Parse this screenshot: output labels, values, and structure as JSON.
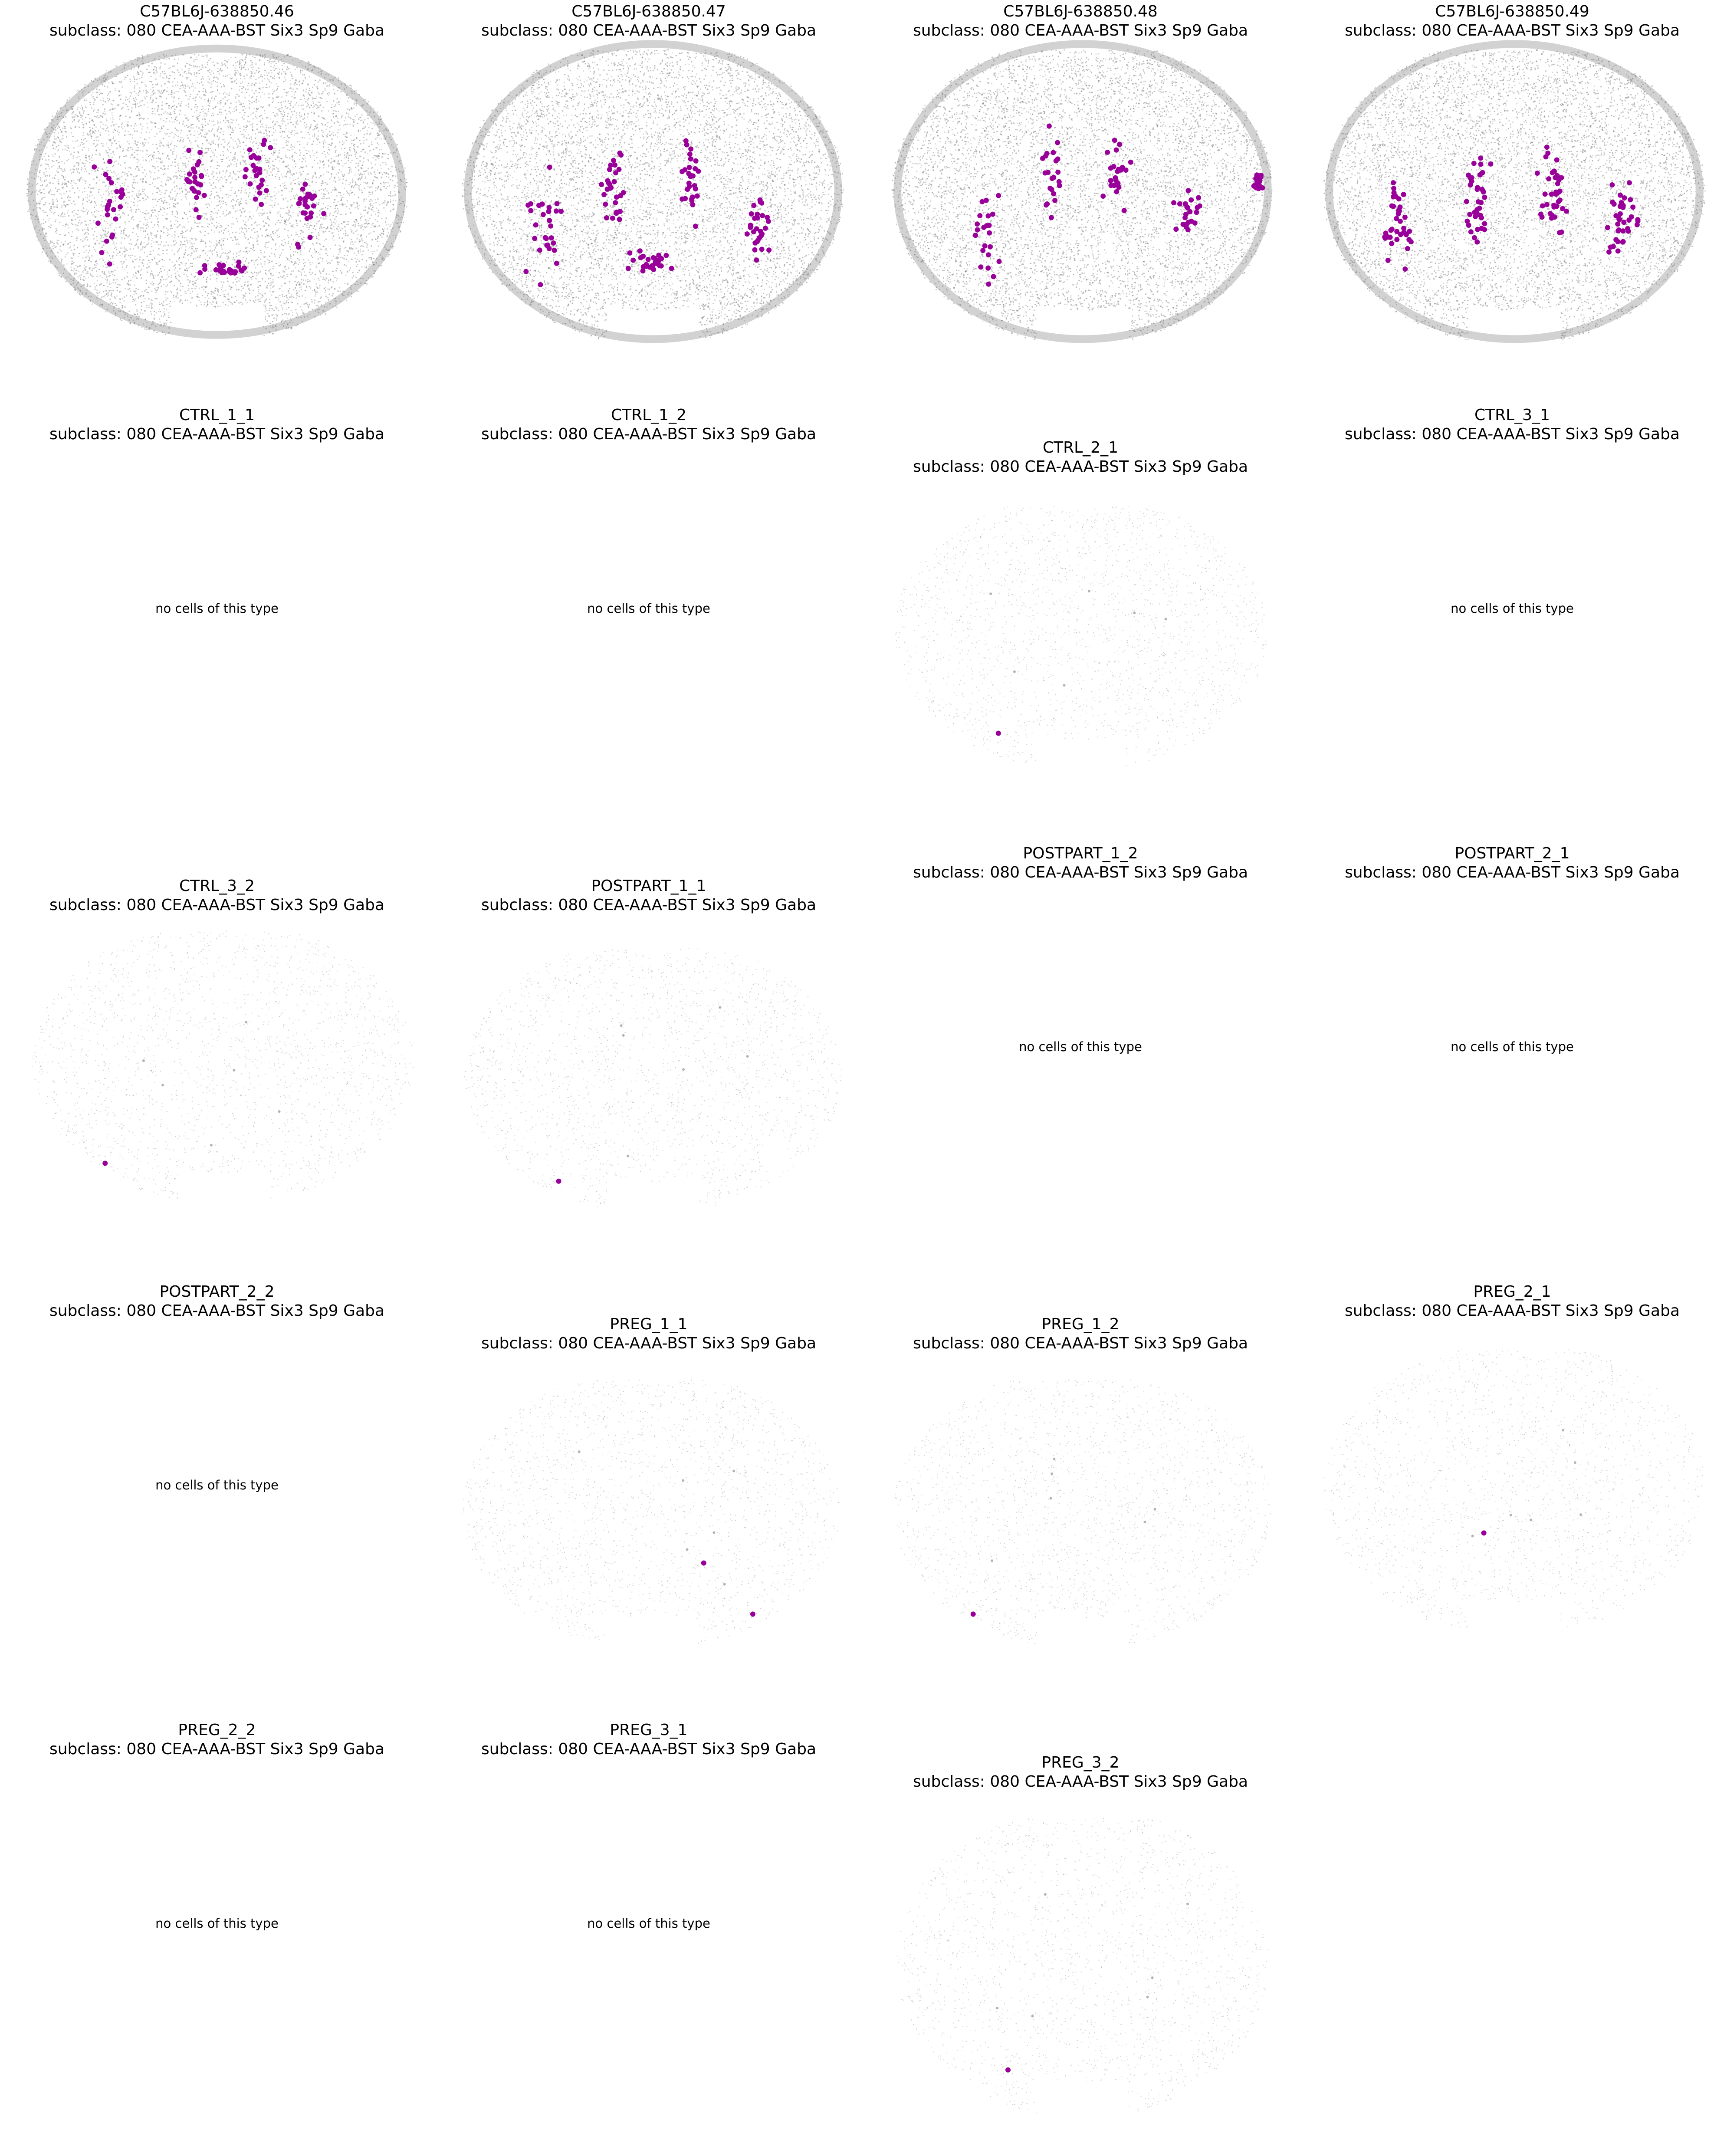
{
  "colors": {
    "background_cells": "#7f7f7f",
    "highlight_cells": "#990099"
  },
  "chart_data": [
    {
      "type": "scatter",
      "section": "C57BL6J-638850.46",
      "title_line2": "subclass: 080 CEA-AAA-BST Six3 Sp9 Gaba",
      "style": "dense",
      "highlight_count": 120,
      "highlight_clusters": [
        [
          0.22,
          0.52,
          0.07,
          0.3
        ],
        [
          0.44,
          0.45,
          0.05,
          0.22
        ],
        [
          0.6,
          0.42,
          0.06,
          0.25
        ],
        [
          0.74,
          0.55,
          0.07,
          0.18
        ],
        [
          0.52,
          0.75,
          0.1,
          0.05
        ]
      ]
    },
    {
      "type": "scatter",
      "section": "C57BL6J-638850.47",
      "title_line2": "subclass: 080 CEA-AAA-BST Six3 Sp9 Gaba",
      "style": "dense",
      "highlight_count": 140,
      "highlight_clusters": [
        [
          0.22,
          0.58,
          0.06,
          0.28
        ],
        [
          0.4,
          0.48,
          0.05,
          0.22
        ],
        [
          0.6,
          0.45,
          0.06,
          0.22
        ],
        [
          0.78,
          0.6,
          0.06,
          0.18
        ],
        [
          0.5,
          0.72,
          0.1,
          0.06
        ]
      ]
    },
    {
      "type": "scatter",
      "section": "C57BL6J-638850.48",
      "title_line2": "subclass: 080 CEA-AAA-BST Six3 Sp9 Gaba",
      "style": "dense",
      "highlight_count": 110,
      "highlight_clusters": [
        [
          0.25,
          0.62,
          0.06,
          0.3
        ],
        [
          0.42,
          0.42,
          0.04,
          0.2
        ],
        [
          0.6,
          0.42,
          0.06,
          0.25
        ],
        [
          0.78,
          0.55,
          0.06,
          0.15
        ],
        [
          0.96,
          0.45,
          0.02,
          0.05
        ]
      ]
    },
    {
      "type": "scatter",
      "section": "C57BL6J-638850.49",
      "title_line2": "subclass: 080 CEA-AAA-BST Six3 Sp9 Gaba",
      "style": "dense",
      "highlight_count": 150,
      "highlight_clusters": [
        [
          0.2,
          0.6,
          0.06,
          0.25
        ],
        [
          0.4,
          0.5,
          0.06,
          0.28
        ],
        [
          0.6,
          0.5,
          0.06,
          0.28
        ],
        [
          0.78,
          0.58,
          0.06,
          0.2
        ]
      ]
    },
    {
      "type": "scatter",
      "section": "CTRL_1_1",
      "title_line2": "subclass: 080 CEA-AAA-BST Six3 Sp9 Gaba",
      "style": "empty",
      "empty_message": "no cells of this type"
    },
    {
      "type": "scatter",
      "section": "CTRL_1_2",
      "title_line2": "subclass: 080 CEA-AAA-BST Six3 Sp9 Gaba",
      "style": "empty",
      "empty_message": "no cells of this type"
    },
    {
      "type": "scatter",
      "section": "CTRL_2_1",
      "title_line2": "subclass: 080 CEA-AAA-BST Six3 Sp9 Gaba",
      "style": "sparse",
      "highlight_points": [
        [
          0.28,
          0.86
        ]
      ]
    },
    {
      "type": "scatter",
      "section": "CTRL_3_1",
      "title_line2": "subclass: 080 CEA-AAA-BST Six3 Sp9 Gaba",
      "style": "empty",
      "empty_message": "no cells of this type"
    },
    {
      "type": "scatter",
      "section": "CTRL_3_2",
      "title_line2": "subclass: 080 CEA-AAA-BST Six3 Sp9 Gaba",
      "style": "sparse",
      "highlight_points": [
        [
          0.19,
          0.85
        ]
      ]
    },
    {
      "type": "scatter",
      "section": "POSTPART_1_1",
      "title_line2": "subclass: 080 CEA-AAA-BST Six3 Sp9 Gaba",
      "style": "sparse",
      "highlight_points": [
        [
          0.25,
          0.88
        ]
      ]
    },
    {
      "type": "scatter",
      "section": "POSTPART_1_2",
      "title_line2": "subclass: 080 CEA-AAA-BST Six3 Sp9 Gaba",
      "style": "empty",
      "empty_message": "no cells of this type"
    },
    {
      "type": "scatter",
      "section": "POSTPART_2_1",
      "title_line2": "subclass: 080 CEA-AAA-BST Six3 Sp9 Gaba",
      "style": "empty",
      "empty_message": "no cells of this type"
    },
    {
      "type": "scatter",
      "section": "POSTPART_2_2",
      "title_line2": "subclass: 080 CEA-AAA-BST Six3 Sp9 Gaba",
      "style": "empty",
      "empty_message": "no cells of this type"
    },
    {
      "type": "scatter",
      "section": "PREG_1_1",
      "title_line2": "subclass: 080 CEA-AAA-BST Six3 Sp9 Gaba",
      "style": "sparse",
      "highlight_points": [
        [
          0.64,
          0.68
        ],
        [
          0.77,
          0.87
        ]
      ]
    },
    {
      "type": "scatter",
      "section": "PREG_1_2",
      "title_line2": "subclass: 080 CEA-AAA-BST Six3 Sp9 Gaba",
      "style": "sparse",
      "highlight_points": [
        [
          0.21,
          0.87
        ]
      ]
    },
    {
      "type": "scatter",
      "section": "PREG_2_1",
      "title_line2": "subclass: 080 CEA-AAA-BST Six3 Sp9 Gaba",
      "style": "sparse",
      "highlight_points": [
        [
          0.42,
          0.64
        ]
      ]
    },
    {
      "type": "scatter",
      "section": "PREG_2_2",
      "title_line2": "subclass: 080 CEA-AAA-BST Six3 Sp9 Gaba",
      "style": "empty",
      "empty_message": "no cells of this type"
    },
    {
      "type": "scatter",
      "section": "PREG_3_1",
      "title_line2": "subclass: 080 CEA-AAA-BST Six3 Sp9 Gaba",
      "style": "empty",
      "empty_message": "no cells of this type"
    },
    {
      "type": "scatter",
      "section": "PREG_3_2",
      "title_line2": "subclass: 080 CEA-AAA-BST Six3 Sp9 Gaba",
      "style": "sparse",
      "highlight_points": [
        [
          0.3,
          0.84
        ]
      ]
    }
  ]
}
